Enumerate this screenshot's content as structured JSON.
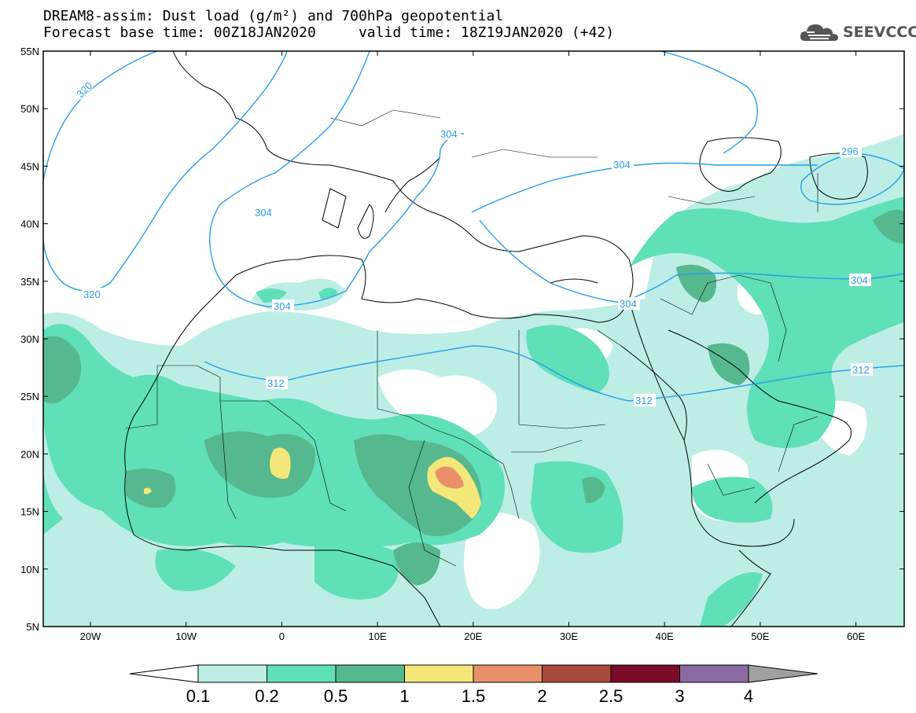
{
  "header": {
    "line1": "DREAM8-assim: Dust load (g/m²) and 700hPa geopotential",
    "line2": "Forecast base time: 00Z18JAN2020     valid time: 18Z19JAN2020 (+42)"
  },
  "logo": {
    "text": "SEEVCCC",
    "icon": "cloud-icon"
  },
  "map": {
    "lat_labels": [
      "55N",
      "50N",
      "45N",
      "40N",
      "35N",
      "30N",
      "25N",
      "20N",
      "15N",
      "10N",
      "5N"
    ],
    "lon_labels": [
      "20W",
      "10W",
      "0",
      "10E",
      "20E",
      "30E",
      "40E",
      "50E",
      "60E"
    ],
    "contour_labels": [
      "320",
      "320",
      "304",
      "304",
      "304",
      "304",
      "304",
      "304",
      "312",
      "312",
      "312",
      "296"
    ]
  },
  "colorbar": {
    "labels": [
      "0.1",
      "0.2",
      "0.5",
      "1",
      "1.5",
      "2",
      "2.5",
      "3",
      "4"
    ],
    "colors": [
      "#ffffff",
      "#bdeee6",
      "#5fe0b8",
      "#55b88e",
      "#f4e77a",
      "#e9906a",
      "#a84a3c",
      "#7a0c2a",
      "#8a6aa0",
      "#a0a0a0"
    ]
  },
  "dust_colors": {
    "light": "#bdeee6",
    "mid": "#5fe0b8",
    "dark": "#55b88e",
    "yellow": "#f4e77a",
    "orange": "#e9906a"
  },
  "contour_color": "#2a9ee8"
}
